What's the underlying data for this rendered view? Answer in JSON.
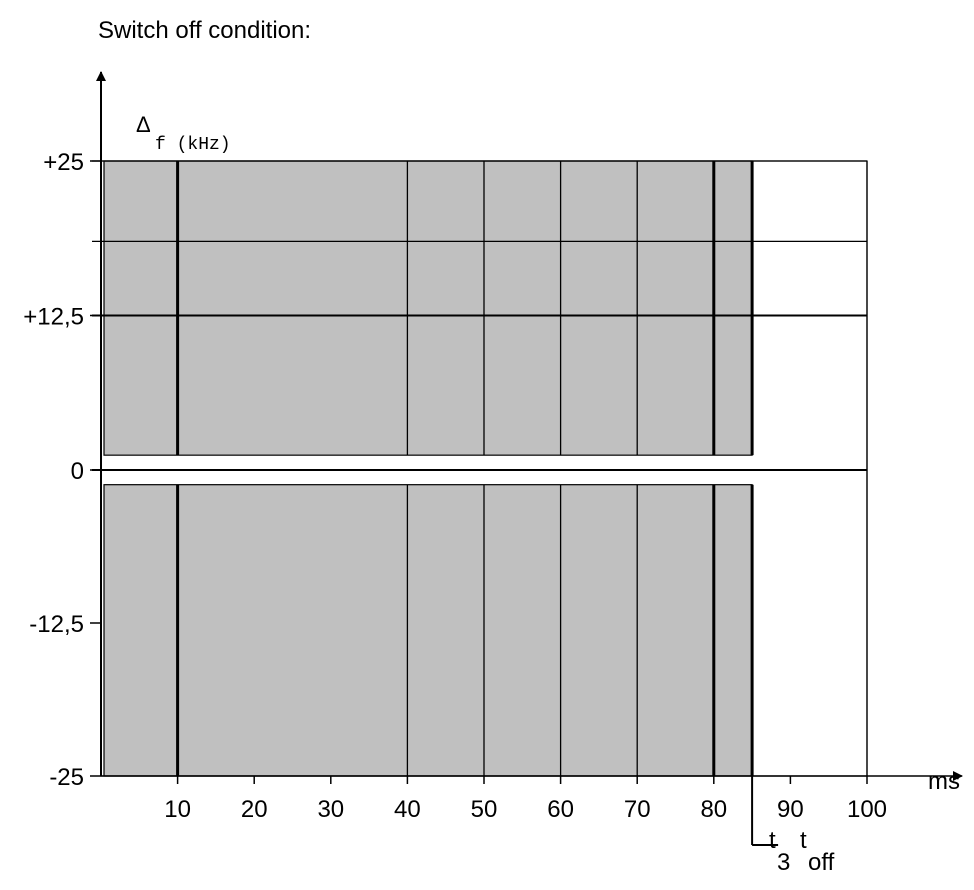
{
  "chart_data": {
    "type": "area",
    "title": "Switch off condition:",
    "ylabel_symbol": "Δ",
    "ylabel_sub": "f (kHz)",
    "x_unit": "ms",
    "xlim": [
      0,
      100
    ],
    "ylim": [
      -25,
      25
    ],
    "y_ticks": [
      {
        "value": 25,
        "label": "+25"
      },
      {
        "value": 12.5,
        "label": "+12,5"
      },
      {
        "value": 0,
        "label": "0"
      },
      {
        "value": -12.5,
        "label": "-12,5"
      },
      {
        "value": -25,
        "label": "-25"
      }
    ],
    "x_ticks": [
      {
        "value": 10,
        "label": "10"
      },
      {
        "value": 20,
        "label": "20"
      },
      {
        "value": 30,
        "label": "30"
      },
      {
        "value": 40,
        "label": "40"
      },
      {
        "value": 50,
        "label": "50"
      },
      {
        "value": 60,
        "label": "60"
      },
      {
        "value": 70,
        "label": "70"
      },
      {
        "value": 80,
        "label": "80"
      },
      {
        "value": 90,
        "label": "90"
      },
      {
        "value": 100,
        "label": "100"
      }
    ],
    "shaded_regions": [
      {
        "x": [
          0,
          85
        ],
        "y": [
          1.2,
          25
        ]
      },
      {
        "x": [
          0,
          85
        ],
        "y": [
          -25,
          -1.2
        ]
      }
    ],
    "vertical_lines": [
      10,
      40,
      50,
      60,
      70,
      80,
      85,
      100
    ],
    "horizontal_lines": [
      25,
      18.5,
      12.5,
      0
    ],
    "markers": {
      "t3": {
        "value": 85,
        "label": "t",
        "sub": "3"
      },
      "toff": {
        "value": 90,
        "label": "t",
        "sub": "off"
      }
    },
    "colors": {
      "shade": "#c0c0c0",
      "line": "#000000"
    }
  }
}
